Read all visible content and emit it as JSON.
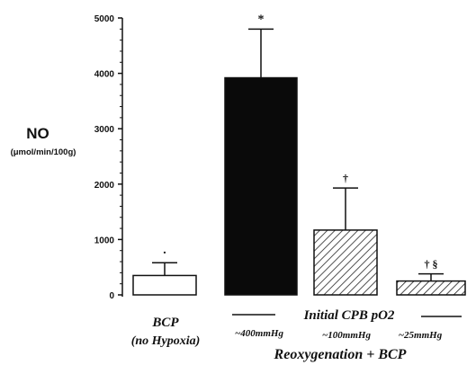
{
  "chart_data": {
    "type": "bar",
    "ylabel": "NO",
    "ylabel_unit": "(μmol/min/100g)",
    "ylim": [
      0,
      5000
    ],
    "yticks": [
      "0",
      "1000",
      "2000",
      "3000",
      "4000",
      "5000"
    ],
    "bars": [
      {
        "label_line1": "BCP",
        "label_line2": "(no Hypoxia)",
        "value": 350,
        "error": 230,
        "fill": "white",
        "marker": "·"
      },
      {
        "label_line1": "~400mmHg",
        "value": 3920,
        "error": 880,
        "fill": "black",
        "marker": "*"
      },
      {
        "label_line1": "~100mmHg",
        "value": 1170,
        "error": 760,
        "fill": "hatch",
        "marker": "†"
      },
      {
        "label_line1": "~25mmHg",
        "value": 250,
        "error": 130,
        "fill": "hatch",
        "marker": "† §"
      }
    ],
    "group_label": "Initial CPB pO2",
    "group_title": "Reoxygenation + BCP"
  }
}
